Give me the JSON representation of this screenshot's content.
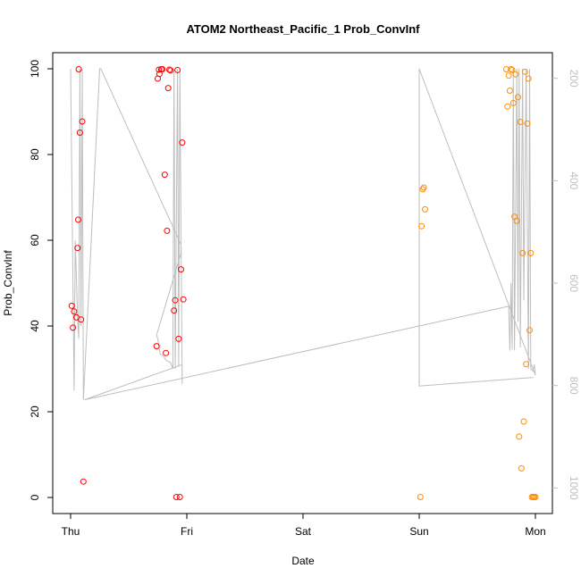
{
  "chart_data": {
    "type": "scatter",
    "title": "ATOM2 Northeast_Pacific_1 Prob_ConvInf",
    "xlabel": "Date",
    "ylabel": "Prob_ConvInf",
    "x_ticks": [
      "Thu",
      "Fri",
      "Sat",
      "Sun",
      "Mon"
    ],
    "ylim": [
      0,
      100
    ],
    "y_ticks": [
      0,
      20,
      40,
      60,
      80,
      100
    ],
    "secondary_axis": {
      "ticks": [
        200,
        400,
        600,
        800,
        1000
      ],
      "range": [
        1050,
        150
      ],
      "color": "#bebebe"
    },
    "grid": false,
    "colors": {
      "series_red": "#ff0000",
      "series_orange": "#ff8c00",
      "line": "#bebebe"
    },
    "series": [
      {
        "color": "#ff0000",
        "points": [
          [
            0.01,
            44.7
          ],
          [
            0.02,
            39.6
          ],
          [
            0.03,
            43.4
          ],
          [
            0.05,
            42.0
          ],
          [
            0.06,
            58.2
          ],
          [
            0.065,
            64.8
          ],
          [
            0.07,
            99.9
          ],
          [
            0.08,
            85.1
          ],
          [
            0.09,
            41.5
          ],
          [
            0.1,
            87.7
          ],
          [
            0.11,
            3.7
          ],
          [
            0.74,
            35.3
          ],
          [
            0.75,
            97.7
          ],
          [
            0.76,
            99.8
          ],
          [
            0.765,
            98.8
          ],
          [
            0.78,
            99.9
          ],
          [
            0.79,
            99.9
          ],
          [
            0.81,
            75.3
          ],
          [
            0.82,
            33.7
          ],
          [
            0.83,
            62.2
          ],
          [
            0.84,
            95.5
          ],
          [
            0.85,
            99.8
          ],
          [
            0.86,
            99.6
          ],
          [
            0.89,
            43.6
          ],
          [
            0.9,
            46.0
          ],
          [
            0.91,
            0.1
          ],
          [
            0.92,
            99.7
          ],
          [
            0.93,
            37.0
          ],
          [
            0.94,
            0.1
          ],
          [
            0.95,
            53.2
          ],
          [
            0.96,
            82.8
          ],
          [
            0.97,
            46.2
          ]
        ]
      },
      {
        "color": "#ff8c00",
        "points": [
          [
            3.01,
            0.1
          ],
          [
            3.02,
            63.3
          ],
          [
            3.03,
            71.9
          ],
          [
            3.04,
            72.3
          ],
          [
            3.05,
            67.2
          ],
          [
            3.75,
            99.9
          ],
          [
            3.76,
            91.2
          ],
          [
            3.77,
            98.4
          ],
          [
            3.78,
            94.9
          ],
          [
            3.79,
            99.9
          ],
          [
            3.8,
            99.7
          ],
          [
            3.81,
            92.0
          ],
          [
            3.82,
            65.5
          ],
          [
            3.83,
            98.7
          ],
          [
            3.84,
            64.5
          ],
          [
            3.85,
            93.4
          ],
          [
            3.86,
            14.2
          ],
          [
            3.87,
            87.6
          ],
          [
            3.88,
            6.8
          ],
          [
            3.89,
            57.0
          ],
          [
            3.9,
            17.7
          ],
          [
            3.91,
            99.3
          ],
          [
            3.92,
            31.1
          ],
          [
            3.93,
            87.2
          ],
          [
            3.94,
            97.7
          ],
          [
            3.95,
            39.0
          ],
          [
            3.96,
            57.0
          ],
          [
            3.97,
            0.1
          ],
          [
            3.98,
            0.1
          ],
          [
            3.99,
            0.1
          ],
          [
            4.0,
            0.1
          ]
        ]
      }
    ],
    "line_series": {
      "color": "#bebebe",
      "points": [
        [
          0.0,
          100
        ],
        [
          0.03,
          25.0
        ],
        [
          0.04,
          60.0
        ],
        [
          0.06,
          42.0
        ],
        [
          0.07,
          37.0
        ],
        [
          0.08,
          100
        ],
        [
          0.09,
          40.0
        ],
        [
          0.1,
          100
        ],
        [
          0.11,
          22.8
        ],
        [
          0.25,
          100
        ],
        [
          0.26,
          100
        ],
        [
          0.95,
          59.0
        ],
        [
          0.95,
          57.0
        ],
        [
          0.74,
          37.9
        ],
        [
          0.75,
          37.0
        ],
        [
          0.77,
          33.5
        ],
        [
          0.8,
          33.0
        ],
        [
          0.82,
          32.0
        ],
        [
          0.86,
          31.5
        ],
        [
          0.88,
          30.0
        ],
        [
          0.89,
          100
        ],
        [
          0.9,
          30.0
        ],
        [
          0.92,
          100
        ],
        [
          0.93,
          30.5
        ],
        [
          0.94,
          100
        ],
        [
          0.96,
          26.5
        ],
        [
          0.96,
          31.0
        ],
        [
          0.12,
          22.8
        ],
        [
          3.0,
          40.0
        ],
        [
          3.77,
          44.6
        ],
        [
          3.78,
          34.3
        ],
        [
          3.79,
          50.0
        ],
        [
          3.8,
          34.5
        ],
        [
          3.81,
          100
        ],
        [
          3.82,
          34.3
        ],
        [
          3.84,
          100
        ],
        [
          3.85,
          41.0
        ],
        [
          3.86,
          100
        ],
        [
          3.87,
          35.0
        ],
        [
          3.89,
          100
        ],
        [
          3.9,
          46.0
        ],
        [
          3.92,
          100
        ],
        [
          3.94,
          30.0
        ],
        [
          3.95,
          100
        ],
        [
          3.96,
          30.0
        ],
        [
          3.98,
          29.5
        ],
        [
          3.99,
          31.0
        ],
        [
          4.0,
          28.5
        ],
        [
          3.0,
          100
        ],
        [
          3.0,
          26.0
        ],
        [
          3.98,
          28.0
        ]
      ]
    }
  }
}
